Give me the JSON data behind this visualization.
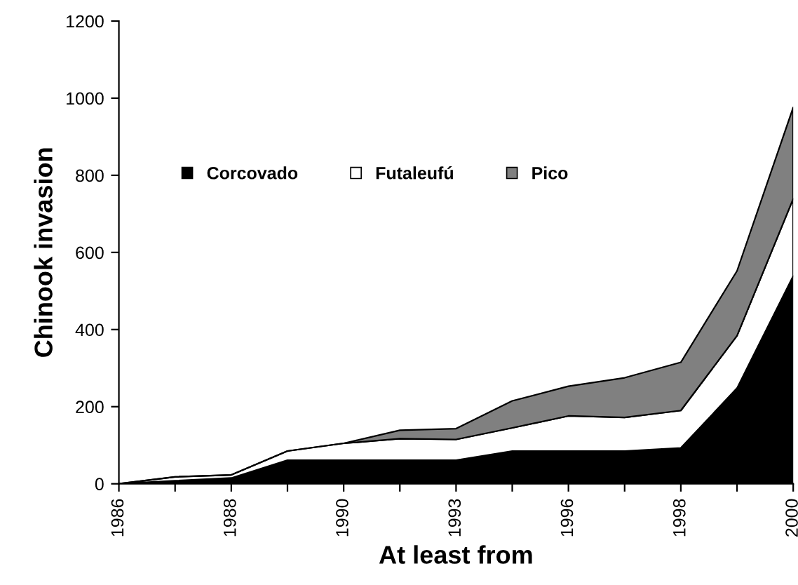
{
  "chart_data": {
    "type": "area",
    "stacked": true,
    "xlabel": "At least from",
    "ylabel": "Chinook invasion",
    "categories": [
      "1986",
      null,
      "1988",
      null,
      "1990",
      null,
      "1993",
      null,
      "1996",
      null,
      "1998",
      null,
      "2000"
    ],
    "series": [
      {
        "name": "Corcovado",
        "color": "#000000",
        "values": [
          0,
          8,
          15,
          61,
          61,
          61,
          61,
          85,
          85,
          85,
          93,
          248,
          539
        ]
      },
      {
        "name": "Futaleufú",
        "color": "#ffffff",
        "values": [
          0,
          10,
          8,
          24,
          44,
          56,
          54,
          60,
          91,
          87,
          97,
          136,
          200
        ]
      },
      {
        "name": "Pico",
        "color": "#808080",
        "values": [
          0,
          0,
          0,
          0,
          0,
          22,
          28,
          70,
          77,
          103,
          125,
          168,
          237
        ]
      }
    ],
    "ylim": [
      0,
      1200
    ],
    "yticks": [
      0,
      200,
      400,
      600,
      800,
      1000,
      1200
    ],
    "grid": false,
    "legend": "top"
  }
}
